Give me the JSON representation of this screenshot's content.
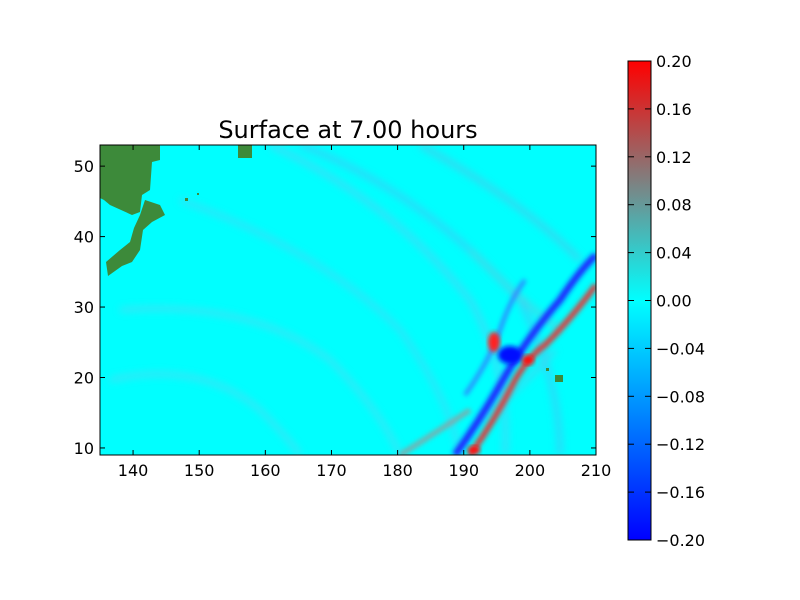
{
  "figure": {
    "title": "Surface at 7.00 hours"
  },
  "colors": {
    "background": "#00FFFF",
    "land": "#3D8F3D",
    "colormap": [
      "#0000FF",
      "#00FFFF",
      "#FF0000"
    ]
  },
  "chart_data": [
    {
      "type": "heatmap",
      "title": "Surface at 7.00 hours",
      "xlabel": "",
      "ylabel": "",
      "xlim": [
        135,
        210
      ],
      "ylim": [
        9,
        53
      ],
      "x_ticks": [
        140,
        150,
        160,
        170,
        180,
        190,
        200,
        210
      ],
      "y_ticks": [
        10,
        20,
        30,
        40,
        50
      ],
      "grid": false,
      "value_range": [
        -0.2,
        0.2
      ],
      "colorbar": {
        "ticks": [
          "0.20",
          "0.16",
          "0.12",
          "0.08",
          "0.04",
          "0.00",
          "−0.04",
          "−0.08",
          "−0.12",
          "−0.16",
          "−0.20"
        ],
        "tick_values": [
          0.2,
          0.16,
          0.12,
          0.08,
          0.04,
          0.0,
          -0.04,
          -0.08,
          -0.12,
          -0.16,
          -0.2
        ],
        "placement": "right"
      },
      "features": [
        {
          "name": "wave-front-positive",
          "value": 0.2,
          "lon": [
            191,
            200,
            210
          ],
          "lat": [
            9,
            22,
            33
          ]
        },
        {
          "name": "wave-front-negative",
          "value": -0.2,
          "lon": [
            189,
            197,
            206
          ],
          "lat": [
            9,
            21,
            30
          ]
        },
        {
          "name": "source-anomaly-positive",
          "value": 0.18,
          "lon": 195,
          "lat": 24
        },
        {
          "name": "source-anomaly-negative",
          "value": -0.2,
          "lon": 197,
          "lat": 23
        }
      ]
    }
  ]
}
